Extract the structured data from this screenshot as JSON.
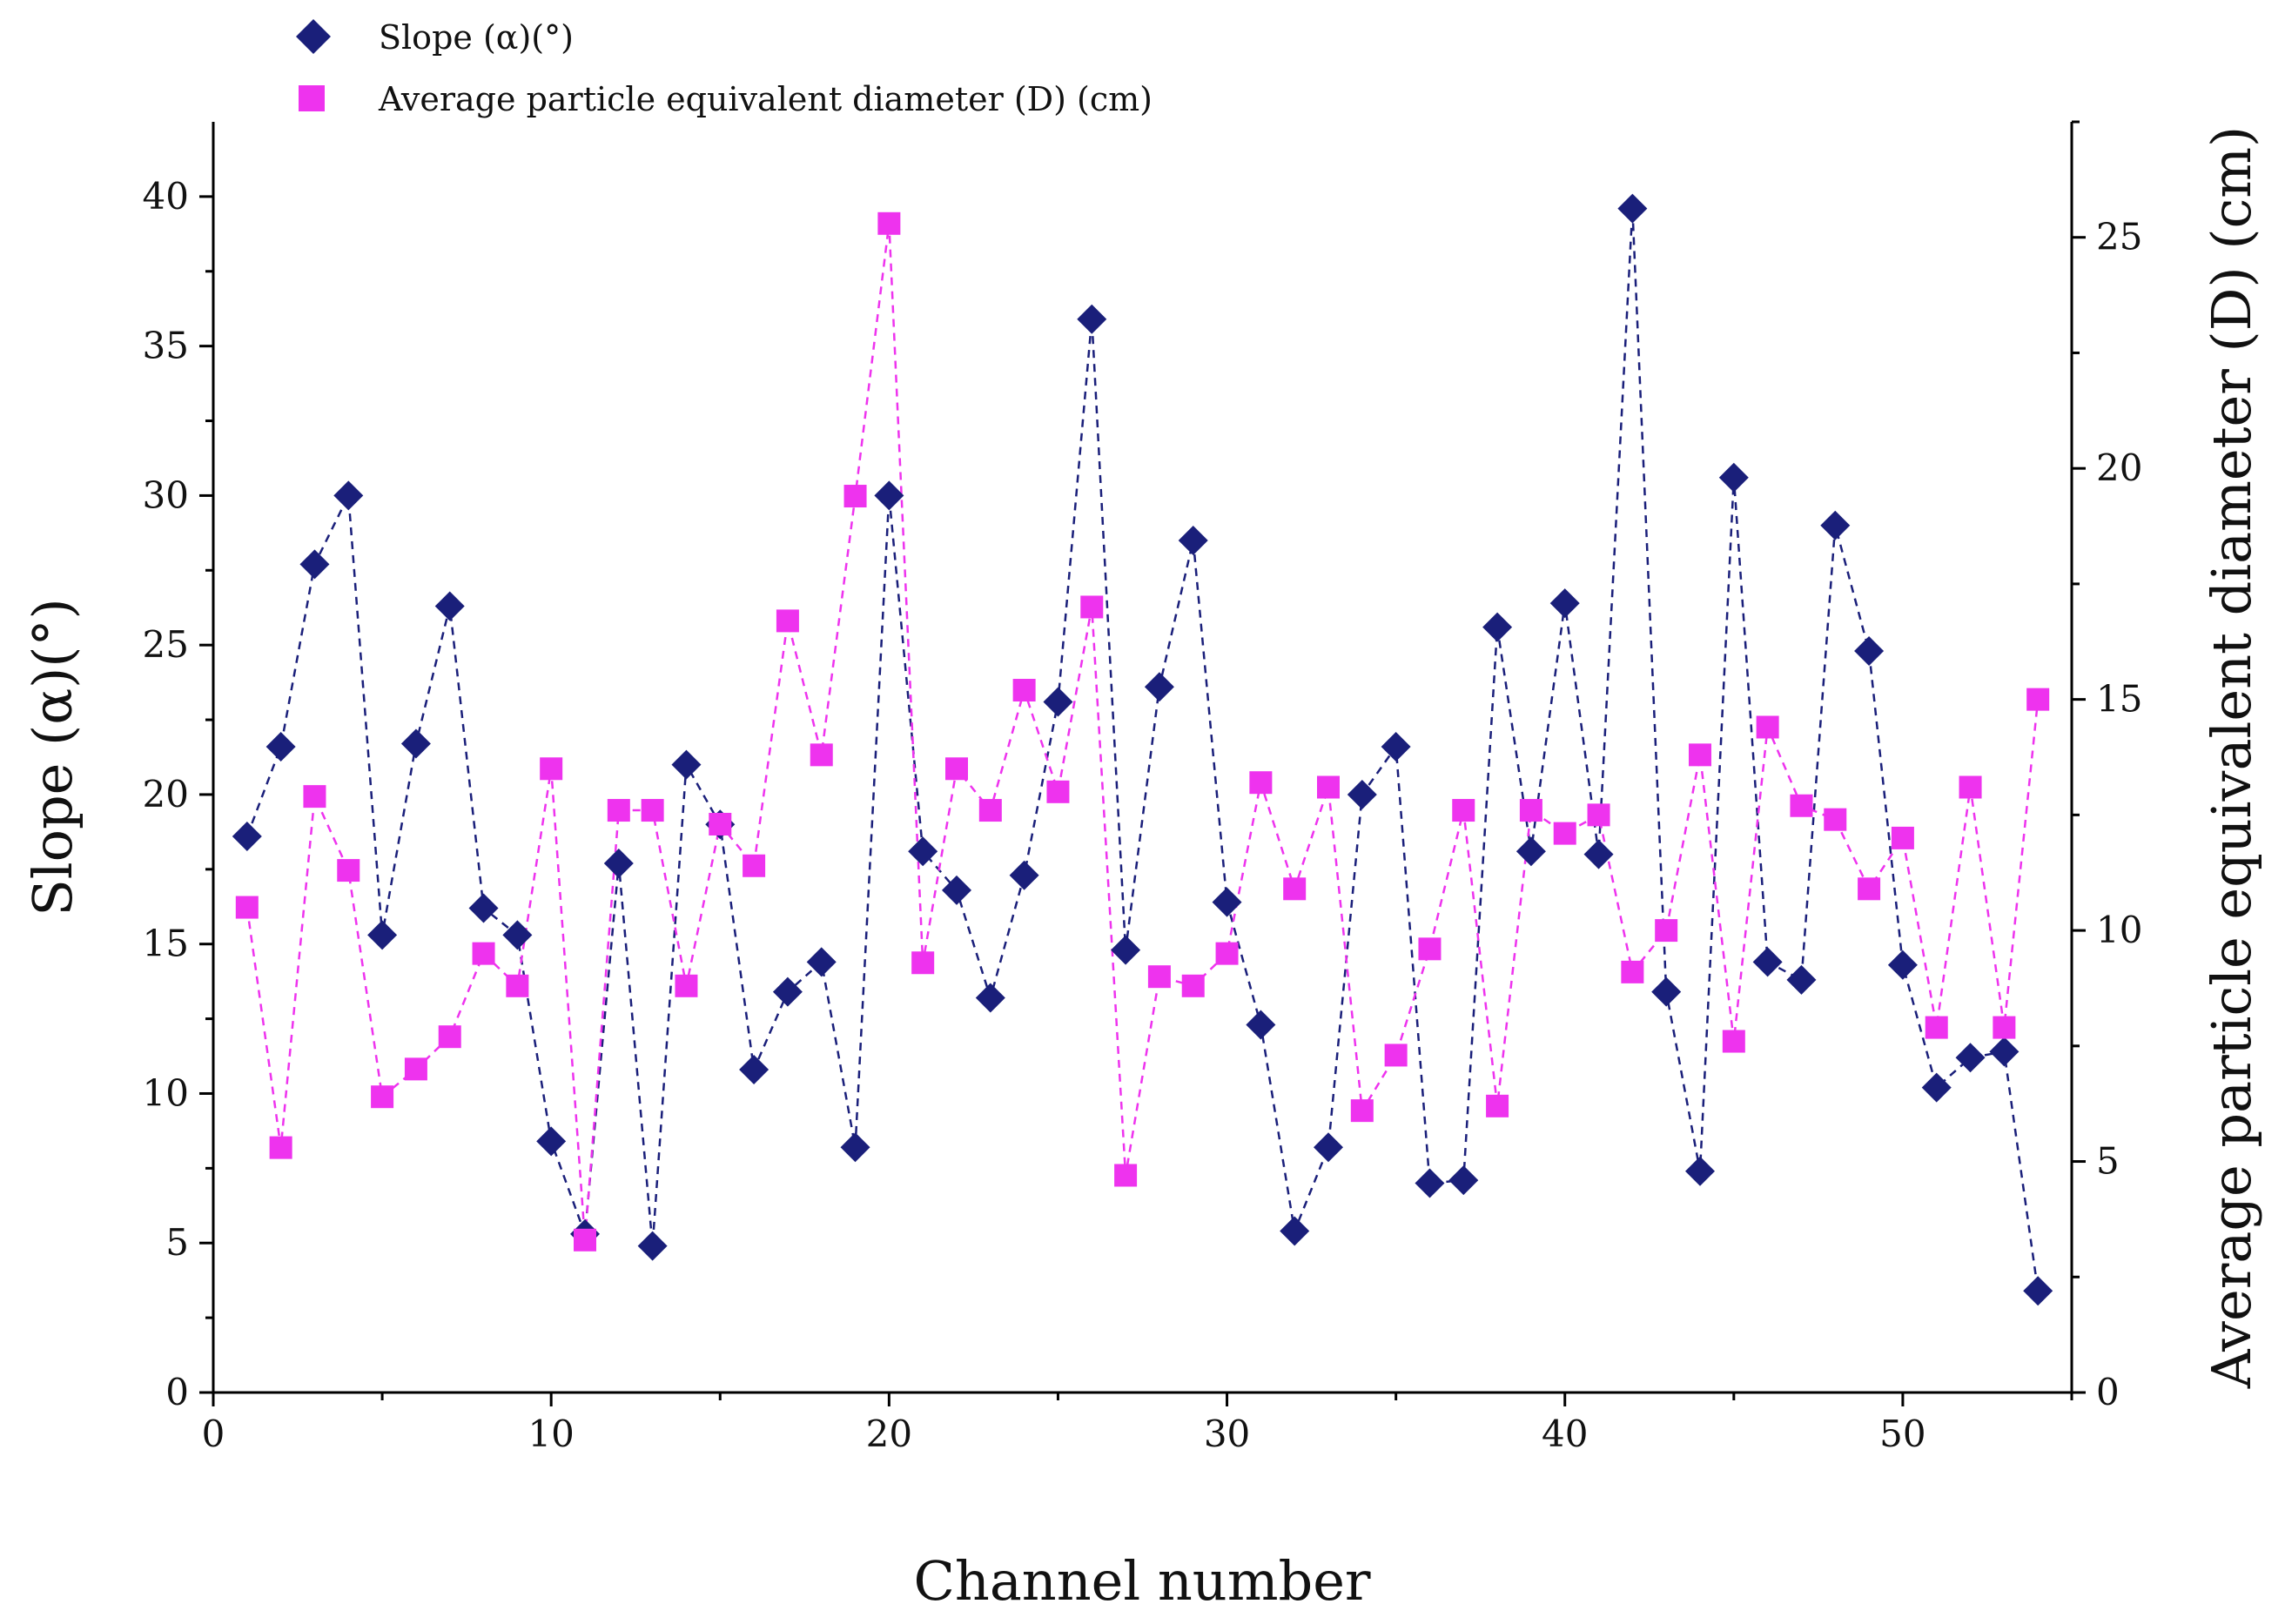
{
  "chart_data": {
    "type": "scatter",
    "title": "",
    "xlabel": "Channel number",
    "ylabel": "Slope (α)(°)",
    "y2label": "Average particle equivalent diameter (D) (cm)",
    "xlim": [
      0,
      55
    ],
    "ylim": [
      0,
      42.5
    ],
    "y2lim": [
      0,
      27.5
    ],
    "xticks": [
      0,
      10,
      20,
      30,
      40,
      50
    ],
    "yticks": [
      0,
      5,
      10,
      15,
      20,
      25,
      30,
      35,
      40
    ],
    "y2ticks": [
      0,
      5,
      10,
      15,
      20,
      25
    ],
    "grid": false,
    "legend_position": "top-left",
    "x": [
      1,
      2,
      3,
      4,
      5,
      6,
      7,
      8,
      9,
      10,
      11,
      12,
      13,
      14,
      15,
      16,
      17,
      18,
      19,
      20,
      21,
      22,
      23,
      24,
      25,
      26,
      27,
      28,
      29,
      30,
      31,
      32,
      33,
      34,
      35,
      36,
      37,
      38,
      39,
      40,
      41,
      42,
      43,
      44,
      45,
      46,
      47,
      48,
      49,
      50,
      51,
      52,
      53,
      54
    ],
    "series": [
      {
        "name": "Slope (α)(°)",
        "axis": "left",
        "marker": "diamond",
        "color": "#1a1f7a",
        "values": [
          18.6,
          21.6,
          27.7,
          30.0,
          15.3,
          21.7,
          26.3,
          16.2,
          15.3,
          8.4,
          5.3,
          17.7,
          4.9,
          21.0,
          19.0,
          10.8,
          13.4,
          14.4,
          8.2,
          30.0,
          18.1,
          16.8,
          13.2,
          17.3,
          23.1,
          35.9,
          14.8,
          23.6,
          28.5,
          16.4,
          12.3,
          5.4,
          8.2,
          20.0,
          21.6,
          7.0,
          7.1,
          25.6,
          18.1,
          26.4,
          18.0,
          39.6,
          13.4,
          7.4,
          30.6,
          14.4,
          13.8,
          29.0,
          24.8,
          14.3,
          10.2,
          11.2,
          11.4,
          3.4
        ]
      },
      {
        "name": "Average particle equivalent diameter (D) (cm)",
        "axis": "right",
        "marker": "square",
        "color": "#ee33ee",
        "values": [
          10.5,
          5.3,
          12.9,
          11.3,
          6.4,
          7.0,
          7.7,
          9.5,
          8.8,
          13.5,
          3.3,
          12.6,
          12.6,
          8.8,
          12.3,
          11.4,
          16.7,
          13.8,
          19.4,
          25.3,
          9.3,
          13.5,
          12.6,
          15.2,
          13.0,
          17.0,
          4.7,
          9.0,
          8.8,
          9.5,
          13.2,
          10.9,
          13.1,
          6.1,
          7.3,
          9.6,
          12.6,
          6.2,
          12.6,
          12.1,
          12.5,
          9.1,
          10.0,
          13.8,
          7.6,
          14.4,
          12.7,
          12.4,
          10.9,
          12.0,
          7.9,
          13.1,
          7.9,
          15.0
        ]
      }
    ]
  }
}
